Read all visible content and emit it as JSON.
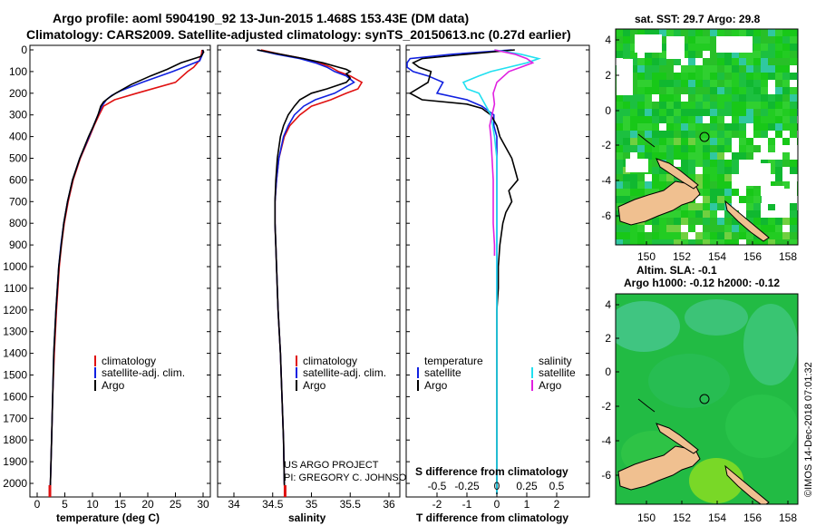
{
  "header": {
    "line1": "Argo profile: aoml 5904190_92 13-Jun-2015 1.468S 153.43E (DM data)",
    "line2": "Climatology: CARS2009. Satellite-adjusted climatology: synTS_20150613.nc (0.27d earlier)"
  },
  "depth_ticks": [
    "0",
    "100",
    "200",
    "300",
    "400",
    "500",
    "600",
    "700",
    "800",
    "900",
    "1000",
    "1100",
    "1200",
    "1300",
    "1400",
    "1500",
    "1600",
    "1700",
    "1800",
    "1900",
    "2000"
  ],
  "colors": {
    "climatology": "#e01010",
    "satellite": "#1020e0",
    "argo": "#000000",
    "sal_satellite": "#20e0f0",
    "sal_argo": "#e020e0",
    "land": "#f0c090",
    "map_green": "#18c818"
  },
  "chart_data": [
    {
      "type": "line",
      "id": "temperature",
      "xlabel": "temperature (deg C)",
      "ylabel": "depth",
      "xlim": [
        -1,
        32
      ],
      "ylim": [
        2080,
        0
      ],
      "xticks": [
        "0",
        "5",
        "10",
        "15",
        "20",
        "25",
        "30"
      ],
      "legend": [
        "climatology",
        "satellite-adj. clim.",
        "Argo"
      ],
      "series": [
        {
          "name": "climatology",
          "depth": [
            0,
            20,
            50,
            80,
            100,
            150,
            200,
            230,
            260,
            300,
            350,
            400,
            500,
            600,
            700,
            800,
            900,
            1000,
            1200,
            1400,
            1600,
            1800,
            2000,
            2050
          ],
          "values": [
            29.8,
            29.7,
            29.3,
            28.3,
            27.2,
            25.0,
            18.0,
            14.0,
            12.0,
            11.2,
            10.3,
            9.5,
            7.8,
            6.5,
            5.6,
            4.9,
            4.4,
            4.0,
            3.5,
            3.1,
            2.8,
            2.6,
            2.4,
            2.3
          ]
        },
        {
          "name": "satellite-adj. clim.",
          "depth": [
            0,
            20,
            50,
            80,
            100,
            150,
            190,
            210,
            230,
            260,
            300,
            350,
            400,
            500,
            600,
            700,
            800,
            900,
            1000,
            1200,
            1400,
            1600,
            1800,
            2000,
            2050
          ],
          "values": [
            30.0,
            29.9,
            29.4,
            26.5,
            24.5,
            19.0,
            15.0,
            13.5,
            12.5,
            11.7,
            11.0,
            10.2,
            9.4,
            7.7,
            6.4,
            5.5,
            4.8,
            4.3,
            3.9,
            3.4,
            3.0,
            2.8,
            2.6,
            2.4,
            2.3
          ]
        },
        {
          "name": "Argo",
          "depth": [
            0,
            10,
            30,
            60,
            90,
            120,
            160,
            200,
            220,
            240,
            260,
            300,
            350,
            400,
            500,
            600,
            700,
            800,
            1000,
            1200,
            1400,
            1600,
            1800,
            2000,
            2050
          ],
          "values": [
            29.9,
            30.1,
            29.6,
            26.0,
            23.5,
            20.5,
            17.0,
            14.2,
            13.0,
            12.0,
            11.5,
            11.0,
            10.2,
            9.3,
            7.7,
            6.4,
            5.5,
            4.8,
            3.9,
            3.4,
            3.0,
            2.8,
            2.6,
            2.4,
            2.3
          ]
        }
      ]
    },
    {
      "type": "line",
      "id": "salinity",
      "xlabel": "salinity",
      "ylabel": "depth",
      "xlim": [
        33.8,
        36.1
      ],
      "ylim": [
        2080,
        0
      ],
      "xticks": [
        "34",
        "34.5",
        "35",
        "35.5",
        "36"
      ],
      "legend": [
        "climatology",
        "satellite-adj. clim.",
        "Argo"
      ],
      "series": [
        {
          "name": "climatology",
          "depth": [
            0,
            20,
            40,
            60,
            80,
            100,
            120,
            150,
            180,
            200,
            230,
            260,
            300,
            350,
            400,
            500,
            600,
            700,
            800,
            900,
            1000,
            1200,
            1400,
            1600,
            1800,
            2000,
            2050
          ],
          "values": [
            34.35,
            34.6,
            34.9,
            35.1,
            35.25,
            35.35,
            35.5,
            35.65,
            35.6,
            35.45,
            35.25,
            35.0,
            34.85,
            34.72,
            34.65,
            34.58,
            34.55,
            34.53,
            34.53,
            34.54,
            34.55,
            34.57,
            34.6,
            34.62,
            34.64,
            34.65,
            34.66
          ]
        },
        {
          "name": "satellite-adj. clim.",
          "depth": [
            0,
            20,
            40,
            60,
            80,
            100,
            120,
            150,
            170,
            200,
            230,
            260,
            300,
            350,
            400,
            500,
            600,
            700,
            800,
            900,
            1000,
            1200,
            1400,
            1600,
            1800,
            2000,
            2050
          ],
          "values": [
            34.3,
            34.55,
            34.85,
            35.05,
            35.2,
            35.3,
            35.45,
            35.55,
            35.45,
            35.3,
            35.05,
            34.9,
            34.78,
            34.7,
            34.64,
            34.58,
            34.55,
            34.53,
            34.53,
            34.54,
            34.55,
            34.57,
            34.6,
            34.62,
            34.64,
            34.65,
            34.66
          ]
        },
        {
          "name": "Argo",
          "depth": [
            0,
            20,
            40,
            60,
            80,
            90,
            100,
            110,
            130,
            150,
            180,
            200,
            230,
            260,
            300,
            350,
            400,
            500,
            600,
            700,
            800,
            900,
            1000,
            1200,
            1400,
            1600,
            1800,
            2000,
            2050
          ],
          "values": [
            34.3,
            34.6,
            34.9,
            35.15,
            35.35,
            35.45,
            35.5,
            35.45,
            35.5,
            35.45,
            35.2,
            35.0,
            34.85,
            34.78,
            34.7,
            34.64,
            34.6,
            34.56,
            34.54,
            34.53,
            34.53,
            34.54,
            34.55,
            34.57,
            34.6,
            34.62,
            34.64,
            34.65,
            34.66
          ]
        }
      ]
    },
    {
      "type": "line",
      "id": "difference",
      "xlabel": "T difference from climatology",
      "xlabel_top": "S difference from climatology",
      "ylabel": "depth",
      "xlim": [
        -3,
        3.2
      ],
      "ylim": [
        2080,
        0
      ],
      "xticks": [
        "-2",
        "-1",
        "0",
        "1",
        "2"
      ],
      "xticks_top": [
        "-0.5",
        "-0.25",
        "0",
        "0.25",
        "0.5"
      ],
      "legend": {
        "temperature_heading": "temperature",
        "salinity_heading": "salinity",
        "satellite": "satellite",
        "argo": "Argo"
      },
      "series": [
        {
          "name": "T satellite",
          "depth": [
            0,
            20,
            40,
            60,
            80,
            100,
            120,
            150,
            200,
            230,
            260,
            280,
            300,
            350,
            400,
            500,
            700,
            1000,
            1500,
            2050
          ],
          "values": [
            0.5,
            -1.5,
            -2.9,
            -3.0,
            -3.0,
            -2.8,
            -2.3,
            -1.8,
            -2.0,
            -1.0,
            -0.5,
            -0.3,
            -0.1,
            -0.1,
            0.0,
            0.0,
            0.0,
            0.0,
            0.0,
            0.0
          ]
        },
        {
          "name": "T Argo",
          "depth": [
            0,
            20,
            40,
            60,
            80,
            100,
            150,
            200,
            230,
            250,
            270,
            300,
            350,
            400,
            450,
            500,
            550,
            600,
            650,
            700,
            750,
            800,
            900,
            1000,
            1100,
            1200,
            1400,
            1600,
            1800,
            2000,
            2050
          ],
          "values": [
            0.6,
            -1.0,
            -2.5,
            -2.8,
            -2.6,
            -2.2,
            -2.3,
            -2.9,
            -2.5,
            -1.0,
            -0.5,
            -0.2,
            0.0,
            0.1,
            0.3,
            0.5,
            0.6,
            0.7,
            0.4,
            0.5,
            0.3,
            0.2,
            0.1,
            0.05,
            0.05,
            0.0,
            0.0,
            0.0,
            0.0,
            0.0,
            0.0
          ]
        },
        {
          "name": "S satellite",
          "depth": [
            0,
            20,
            40,
            60,
            80,
            100,
            120,
            150,
            180,
            200,
            250,
            300,
            400,
            500,
            700,
            900,
            1000,
            1200,
            1400,
            1600,
            1800,
            2000,
            2050
          ],
          "values": [
            -0.02,
            0.2,
            0.35,
            0.25,
            0.1,
            -0.05,
            -0.15,
            -0.28,
            -0.25,
            -0.15,
            -0.1,
            -0.05,
            -0.02,
            0.0,
            0.0,
            0.0,
            0.0,
            0.0,
            0.0,
            0.0,
            0.0,
            0.0,
            0.0
          ]
        },
        {
          "name": "S Argo",
          "depth": [
            0,
            20,
            40,
            60,
            80,
            100,
            150,
            200,
            250,
            300,
            350,
            400,
            500,
            600,
            700,
            800,
            900,
            950
          ],
          "values": [
            -0.02,
            0.15,
            0.25,
            0.3,
            0.2,
            0.1,
            0.0,
            -0.03,
            -0.02,
            -0.04,
            -0.06,
            -0.05,
            -0.04,
            -0.03,
            -0.03,
            -0.03,
            -0.02,
            -0.02
          ]
        }
      ]
    }
  ],
  "sst_map": {
    "title": "sat. SST: 29.7 Argo: 29.8",
    "x_ticks": [
      "150",
      "152",
      "154",
      "156",
      "158"
    ],
    "y_ticks": [
      "4",
      "2",
      "0",
      "-2",
      "-4",
      "-6"
    ]
  },
  "sla_map": {
    "title_line1": "Altim. SLA: -0.1",
    "title_line2": "Argo h1000: -0.12 h2000: -0.12",
    "x_ticks": [
      "150",
      "152",
      "154",
      "156",
      "158"
    ],
    "y_ticks": [
      "4",
      "2",
      "0",
      "-2",
      "-4",
      "-6"
    ]
  },
  "credits": {
    "project_line1": "US ARGO PROJECT",
    "project_line2": "PI: GREGORY C. JOHNSON",
    "imos": "©IMOS 14-Dec-2018 07:01:32"
  }
}
